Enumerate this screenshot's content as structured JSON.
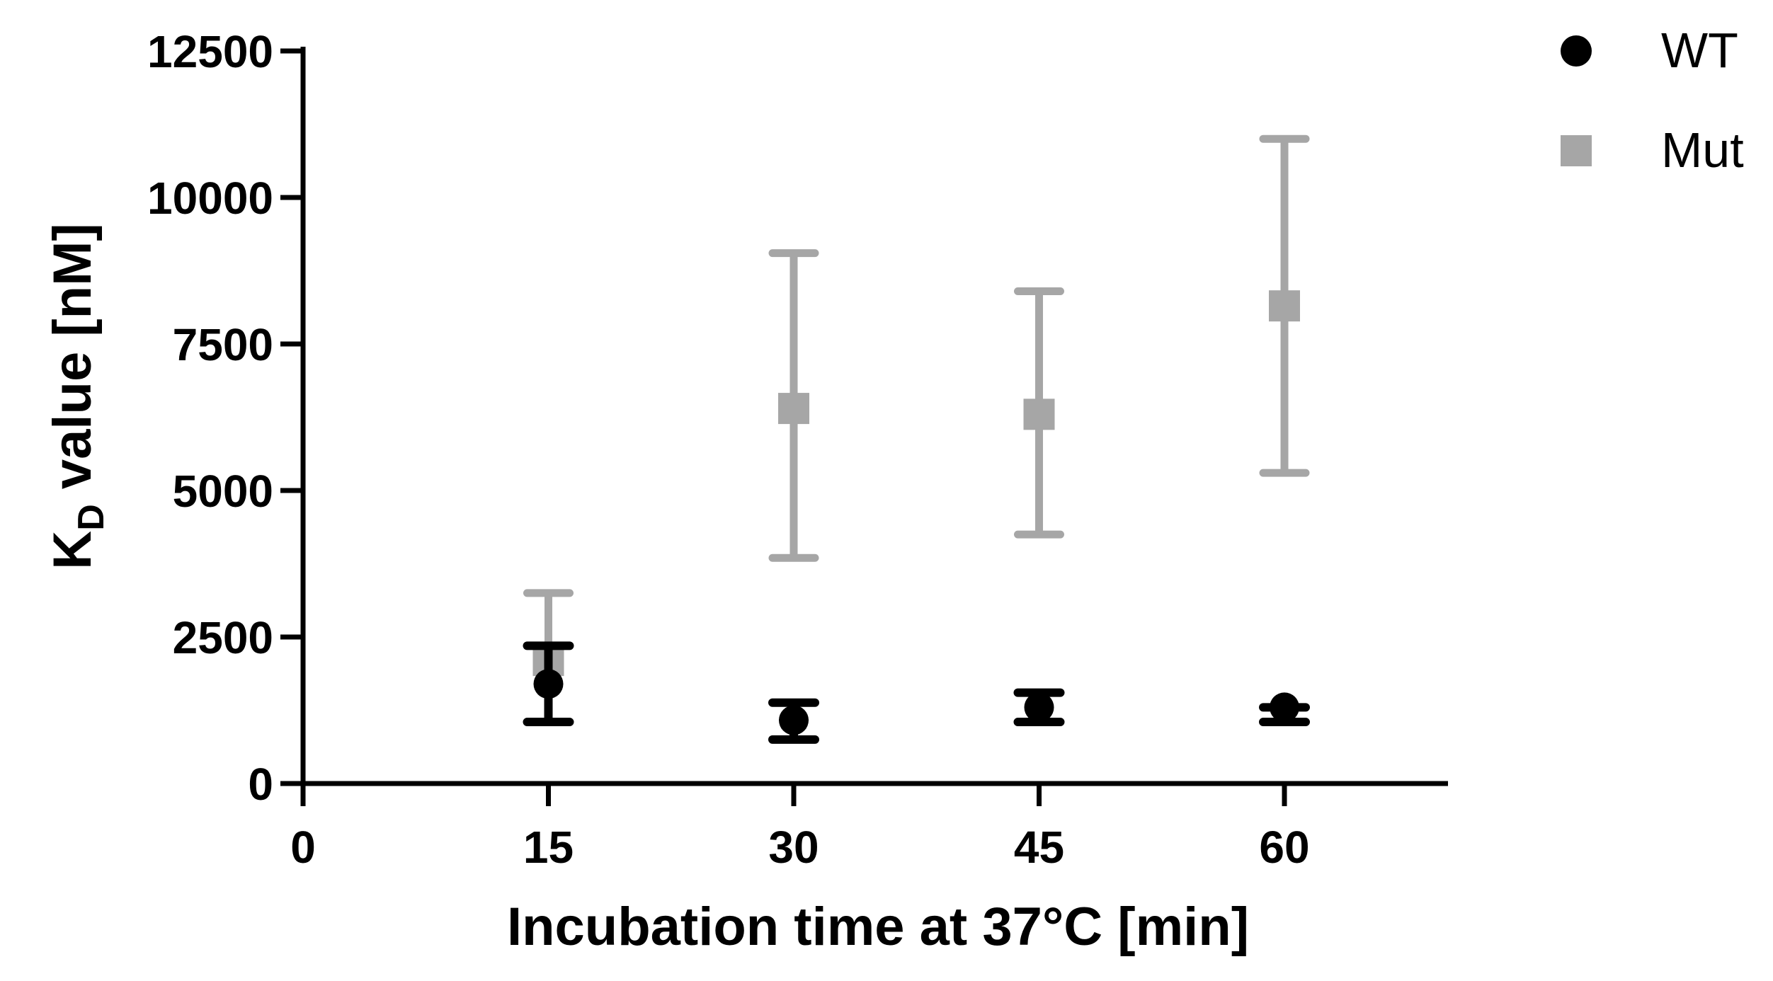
{
  "chart_data": {
    "type": "scatter",
    "title": "",
    "xlabel": "Incubation time at 37°C [min]",
    "ylabel_main": "K",
    "ylabel_sub": "D",
    "ylabel_rest": " value [nM]",
    "xlim": [
      0,
      70
    ],
    "ylim": [
      0,
      12500
    ],
    "xticks": [
      0,
      15,
      30,
      45,
      60
    ],
    "xtick_labels": [
      "0",
      "15",
      "30",
      "45",
      "60"
    ],
    "yticks": [
      0,
      2500,
      5000,
      7500,
      10000,
      12500
    ],
    "ytick_labels": [
      "0",
      "2500",
      "5000",
      "7500",
      "10000",
      "12500"
    ],
    "grid": false,
    "legend_position": "top-right",
    "series": [
      {
        "name": "WT",
        "marker": "circle",
        "color": "#000000",
        "x": [
          15,
          30,
          45,
          60
        ],
        "y": [
          1700,
          1080,
          1300,
          1300
        ],
        "err_low": [
          1050,
          750,
          1050,
          1050
        ],
        "err_high": [
          2350,
          1380,
          1550,
          1300
        ]
      },
      {
        "name": "Mut",
        "marker": "square",
        "color": "#a6a6a6",
        "x": [
          15,
          30,
          45,
          60
        ],
        "y": [
          2100,
          6400,
          6300,
          8150
        ],
        "err_low": [
          1050,
          3850,
          4250,
          5300
        ],
        "err_high": [
          3250,
          9050,
          8400,
          11000
        ]
      }
    ]
  }
}
